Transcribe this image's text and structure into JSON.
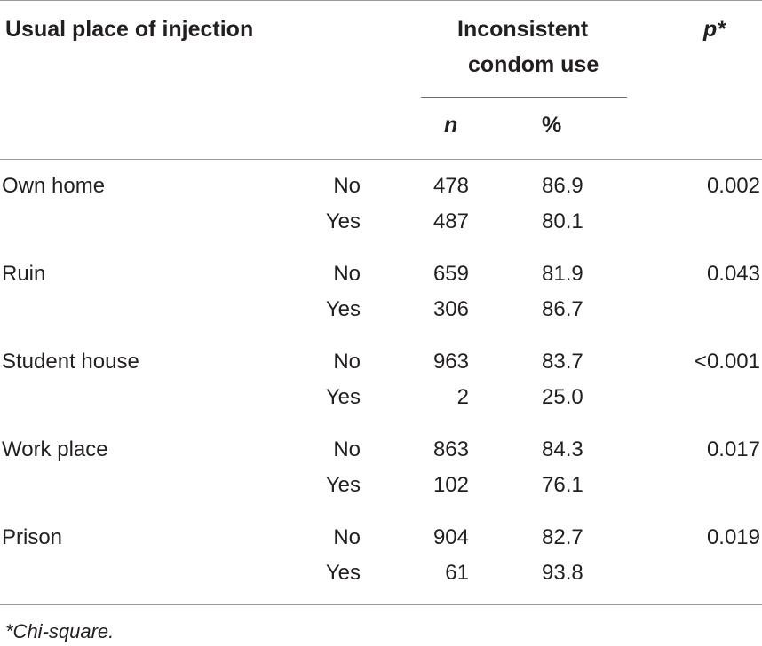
{
  "table": {
    "headers": {
      "place": "Usual place of injection",
      "outcome_line1": "Inconsistent",
      "outcome_line2": "condom use",
      "p": "p*",
      "n": "n",
      "pct": "%"
    },
    "groups": [
      {
        "place": "Own home",
        "p": "0.002",
        "rows": [
          {
            "answer": "No",
            "n": "478",
            "pct": "86.9"
          },
          {
            "answer": "Yes",
            "n": "487",
            "pct": "80.1"
          }
        ]
      },
      {
        "place": "Ruin",
        "p": "0.043",
        "rows": [
          {
            "answer": "No",
            "n": "659",
            "pct": "81.9"
          },
          {
            "answer": "Yes",
            "n": "306",
            "pct": "86.7"
          }
        ]
      },
      {
        "place": "Student house",
        "p": "<0.001",
        "rows": [
          {
            "answer": "No",
            "n": "963",
            "pct": "83.7"
          },
          {
            "answer": "Yes",
            "n": "2",
            "pct": "25.0"
          }
        ]
      },
      {
        "place": "Work place",
        "p": "0.017",
        "rows": [
          {
            "answer": "No",
            "n": "863",
            "pct": "84.3"
          },
          {
            "answer": "Yes",
            "n": "102",
            "pct": "76.1"
          }
        ]
      },
      {
        "place": "Prison",
        "p": "0.019",
        "rows": [
          {
            "answer": "No",
            "n": "904",
            "pct": "82.7"
          },
          {
            "answer": "Yes",
            "n": "61",
            "pct": "93.8"
          }
        ]
      }
    ],
    "footnote": "*Chi-square."
  }
}
